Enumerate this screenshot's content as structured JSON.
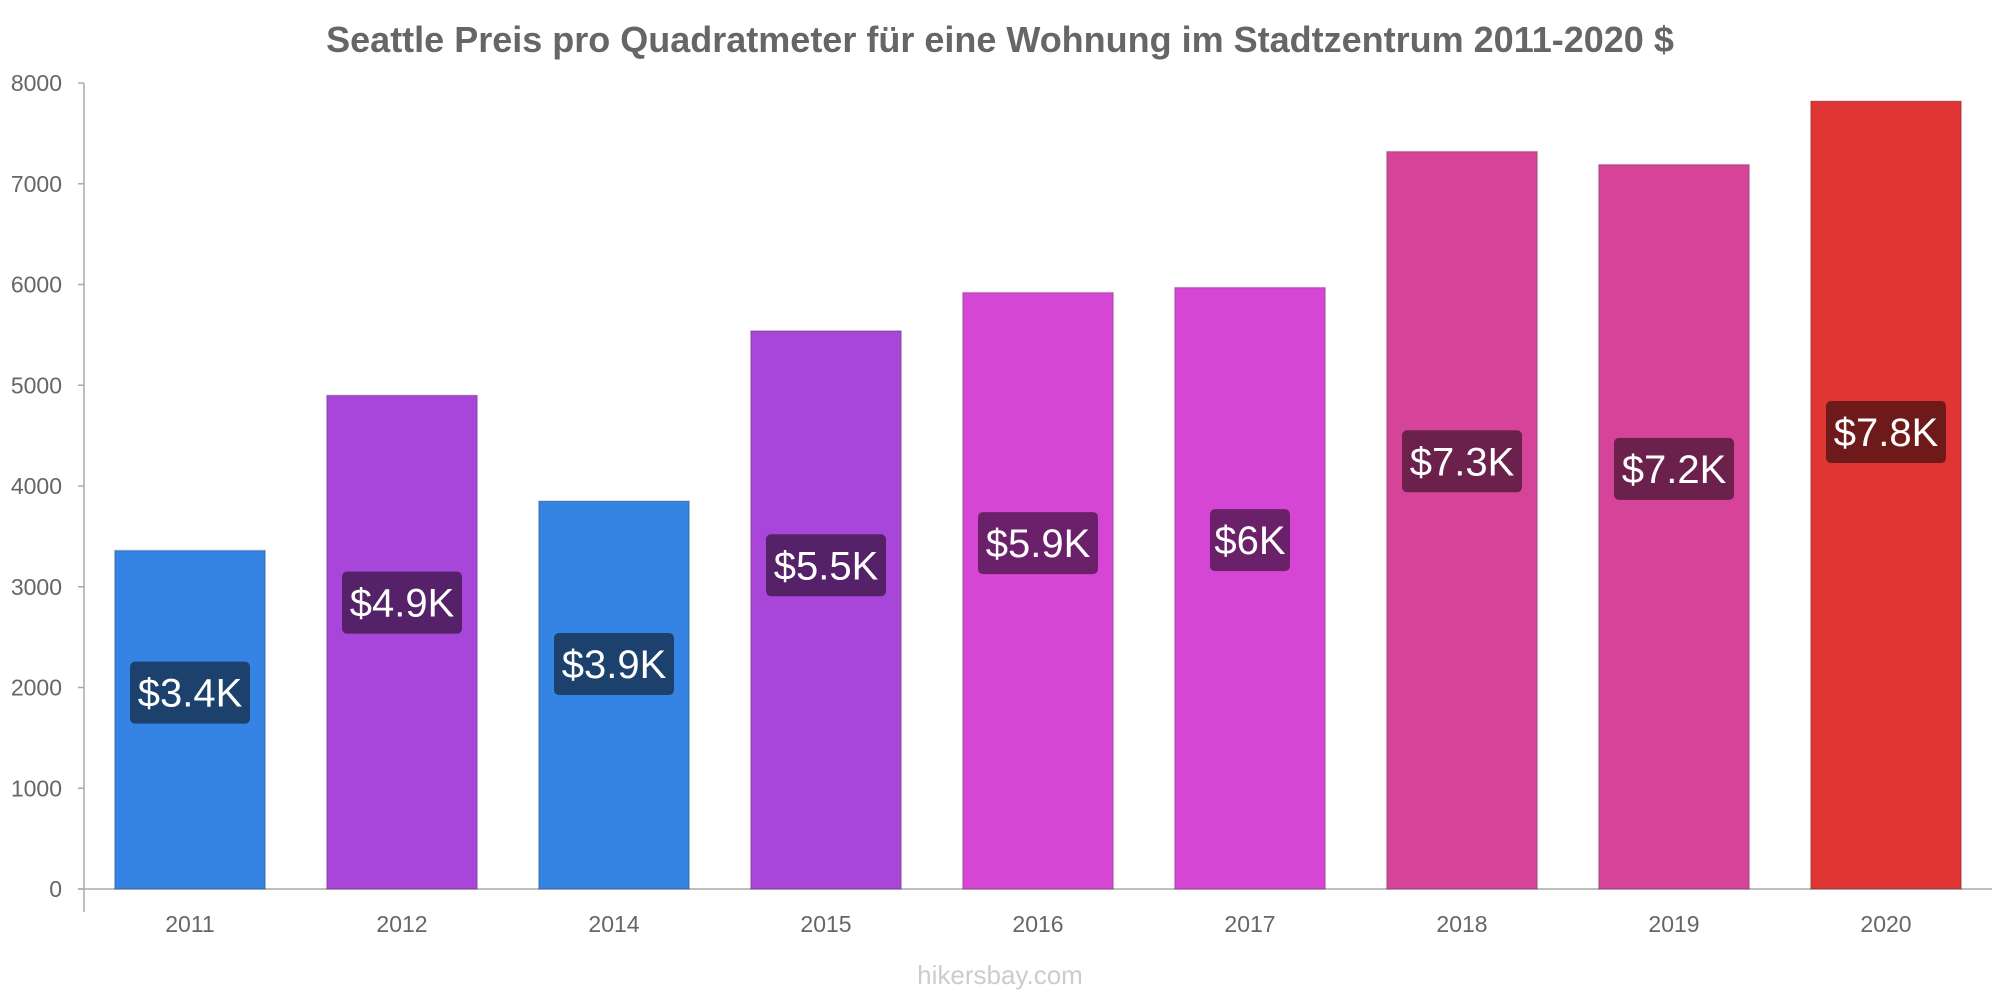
{
  "chart_data": {
    "type": "bar",
    "title": "Seattle Preis pro Quadratmeter für eine Wohnung im Stadtzentrum 2011-2020 $",
    "xlabel": "",
    "ylabel": "",
    "ylim": [
      0,
      8000
    ],
    "yticks": [
      "0",
      "1000",
      "2000",
      "3000",
      "4000",
      "5000",
      "6000",
      "7000",
      "8000"
    ],
    "categories": [
      "2011",
      "2012",
      "2014",
      "2015",
      "2016",
      "2017",
      "2018",
      "2019",
      "2020"
    ],
    "values": [
      3360,
      4900,
      3850,
      5540,
      5920,
      5970,
      7320,
      7190,
      7820
    ],
    "labels": [
      "$3.4K",
      "$4.9K",
      "$3.9K",
      "$5.5K",
      "$5.9K",
      "$6K",
      "$7.3K",
      "$7.2K",
      "$7.8K"
    ],
    "bar_colors": [
      "#3584e4",
      "#a846d9",
      "#3584e4",
      "#a846d9",
      "#d546d4",
      "#d546d4",
      "#d6449a",
      "#d6449a",
      "#e03535"
    ],
    "label_bg_colors": [
      "#1c416d",
      "#552168",
      "#1c416d",
      "#552168",
      "#6b2169",
      "#6b2169",
      "#6b214c",
      "#6b214c",
      "#6f1a1a"
    ],
    "grid": false,
    "legend": "none"
  },
  "watermark": "hikersbay.com"
}
